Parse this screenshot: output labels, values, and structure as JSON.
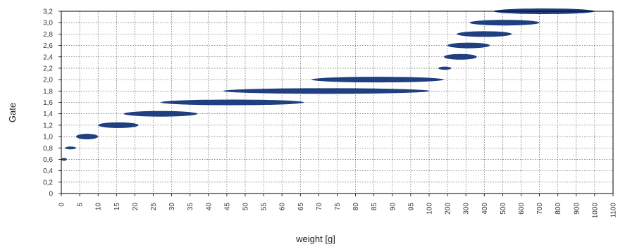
{
  "chart_data": {
    "type": "scatter",
    "title": "",
    "xlabel": "weight [g]",
    "ylabel": "Gate",
    "x_tick_labels": [
      "0",
      "5",
      "10",
      "15",
      "20",
      "25",
      "30",
      "35",
      "40",
      "45",
      "50",
      "55",
      "60",
      "65",
      "70",
      "75",
      "80",
      "85",
      "90",
      "95",
      "100",
      "200",
      "300",
      "400",
      "500",
      "600",
      "700",
      "800",
      "900",
      "1000",
      "1100"
    ],
    "y_tick_labels": [
      "0",
      "0,2",
      "0,4",
      "0,6",
      "0,8",
      "1,0",
      "1,2",
      "1,4",
      "1,6",
      "1,8",
      "2,0",
      "2,2",
      "2,4",
      "2,6",
      "2,8",
      "3,0",
      "3,2"
    ],
    "ylim": [
      0,
      3.2
    ],
    "grid": true,
    "marker_color": "#1f3f80",
    "series": [
      {
        "points": [
          {
            "gate": 0.6,
            "weight_min": 0,
            "weight_max": 1.5
          },
          {
            "gate": 0.8,
            "weight_min": 1,
            "weight_max": 4
          },
          {
            "gate": 1.0,
            "weight_min": 4,
            "weight_max": 10
          },
          {
            "gate": 1.2,
            "weight_min": 10,
            "weight_max": 21
          },
          {
            "gate": 1.4,
            "weight_min": 17,
            "weight_max": 37
          },
          {
            "gate": 1.6,
            "weight_min": 27,
            "weight_max": 66
          },
          {
            "gate": 1.8,
            "weight_min": 44,
            "weight_max": 102
          },
          {
            "gate": 2.0,
            "weight_min": 68,
            "weight_max": 180
          },
          {
            "gate": 2.2,
            "weight_min": 150,
            "weight_max": 220
          },
          {
            "gate": 2.4,
            "weight_min": 180,
            "weight_max": 360
          },
          {
            "gate": 2.6,
            "weight_min": 200,
            "weight_max": 430
          },
          {
            "gate": 2.8,
            "weight_min": 250,
            "weight_max": 550
          },
          {
            "gate": 3.0,
            "weight_min": 320,
            "weight_max": 700
          },
          {
            "gate": 3.2,
            "weight_min": 450,
            "weight_max": 1000
          }
        ]
      }
    ]
  }
}
